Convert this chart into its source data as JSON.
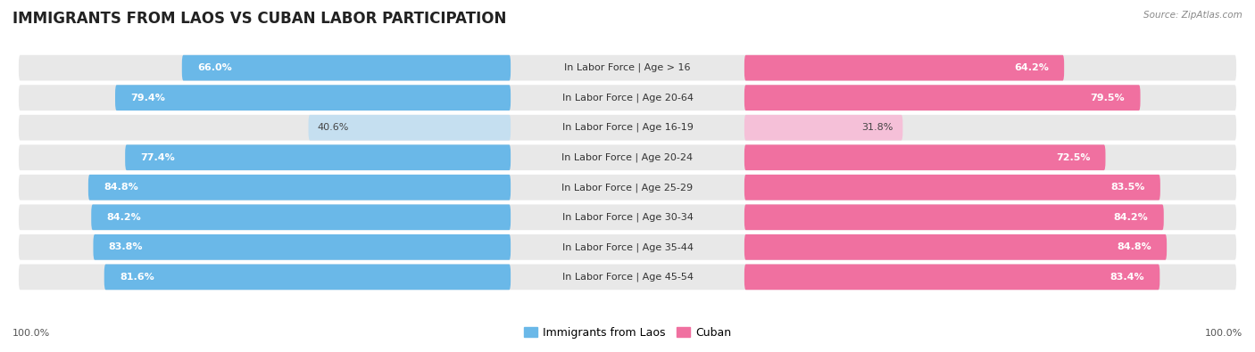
{
  "title": "IMMIGRANTS FROM LAOS VS CUBAN LABOR PARTICIPATION",
  "source": "Source: ZipAtlas.com",
  "categories": [
    "In Labor Force | Age > 16",
    "In Labor Force | Age 20-64",
    "In Labor Force | Age 16-19",
    "In Labor Force | Age 20-24",
    "In Labor Force | Age 25-29",
    "In Labor Force | Age 30-34",
    "In Labor Force | Age 35-44",
    "In Labor Force | Age 45-54"
  ],
  "laos_values": [
    66.0,
    79.4,
    40.6,
    77.4,
    84.8,
    84.2,
    83.8,
    81.6
  ],
  "cuban_values": [
    64.2,
    79.5,
    31.8,
    72.5,
    83.5,
    84.2,
    84.8,
    83.4
  ],
  "laos_color": "#6ab8e8",
  "laos_color_light": "#c5dff0",
  "cuban_color": "#f070a0",
  "cuban_color_light": "#f5c0d8",
  "bar_bg_color": "#e8e8e8",
  "bg_color": "#ffffff",
  "title_fontsize": 12,
  "label_fontsize": 8,
  "value_fontsize": 8,
  "legend_fontsize": 9,
  "max_value": 100.0,
  "light_threshold": 55
}
